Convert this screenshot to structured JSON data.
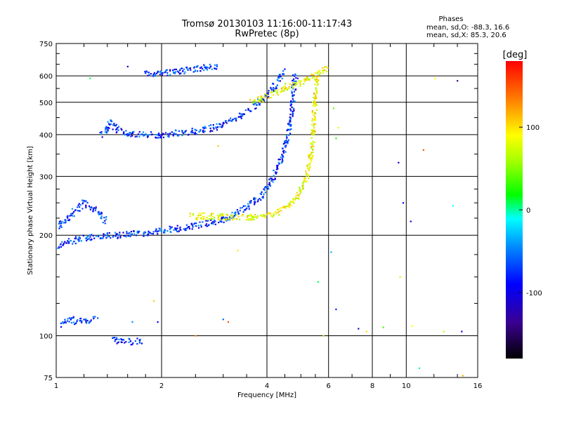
{
  "chart_data": {
    "type": "scatter",
    "title": "Tromsø 20130103 11:16:00-11:17:43",
    "subtitle": "RwPretec (8p)",
    "xlabel": "Frequency [MHz]",
    "ylabel": "Stationary phase Virtual Height [km]",
    "x_scale": "log",
    "y_scale": "log",
    "xlim": [
      1,
      16
    ],
    "ylim": [
      75,
      750
    ],
    "x_ticks": [
      1,
      2,
      4,
      6,
      8,
      10,
      16
    ],
    "x_gridlines": [
      2,
      4,
      6,
      8,
      10
    ],
    "x_minor_ticks": [
      1.2,
      1.4,
      1.6,
      1.8,
      2.5,
      3,
      3.5,
      4.5,
      5,
      5.5,
      7,
      9,
      12,
      14
    ],
    "y_ticks": [
      75,
      100,
      200,
      300,
      400,
      500,
      600,
      750
    ],
    "y_gridlines": [
      100,
      200,
      300,
      400,
      500,
      600
    ],
    "y_minor_ticks": [
      125,
      150,
      175,
      225,
      250,
      275,
      350,
      450,
      550,
      650,
      700
    ],
    "grid": true,
    "phases_box": {
      "heading": "Phases",
      "line1": "mean, sd,O: -88.3, 16.6",
      "line2": "mean, sd,X:  85.3, 20.6"
    },
    "colorbar": {
      "label": "[deg]",
      "range": [
        -180,
        180
      ],
      "ticks": [
        100,
        0,
        -100
      ],
      "colormap": "rainbow",
      "placement": "right"
    },
    "series": [
      {
        "mode": "O",
        "phase_mean": -88.3,
        "traces": [
          {
            "x": [
              1.0,
              1.05,
              1.1,
              1.2,
              1.3,
              1.4,
              1.5,
              1.6,
              1.7,
              1.8,
              1.9,
              2.0,
              2.2,
              2.4,
              2.6,
              2.8,
              3.0,
              3.2,
              3.4,
              3.6,
              3.8,
              4.0,
              4.2,
              4.4,
              4.6,
              4.7,
              4.75,
              4.8
            ],
            "y": [
              185,
              190,
              192,
              196,
              198,
              199,
              200,
              201,
              202,
              203,
              205,
              207,
              209,
              212,
              215,
              218,
              223,
              230,
              238,
              248,
              260,
              275,
              300,
              340,
              400,
              460,
              520,
              600
            ]
          },
          {
            "x": [
              1.0,
              1.05,
              1.1,
              1.15,
              1.2,
              1.3,
              1.4
            ],
            "y": [
              210,
              220,
              230,
              240,
              250,
              235,
              220
            ]
          },
          {
            "x": [
              1.35,
              1.4,
              1.42,
              1.45,
              1.5,
              1.6,
              1.8,
              2.0,
              2.2,
              2.5,
              2.8,
              3.0,
              3.3,
              3.6,
              3.9,
              4.1,
              4.3,
              4.5
            ],
            "y": [
              400,
              420,
              440,
              430,
              410,
              405,
              400,
              400,
              405,
              410,
              420,
              430,
              450,
              480,
              510,
              540,
              580,
              620
            ]
          },
          {
            "x": [
              1.8,
              1.9,
              2.0,
              2.1,
              2.3,
              2.5,
              2.7,
              2.9
            ],
            "y": [
              615,
              610,
              612,
              615,
              622,
              630,
              638,
              640
            ]
          },
          {
            "x": [
              1.03,
              1.06,
              1.1,
              1.15,
              1.2,
              1.3
            ],
            "y": [
              108,
              110,
              112,
              110,
              111,
              112
            ]
          },
          {
            "x": [
              1.45,
              1.55,
              1.65,
              1.75
            ],
            "y": [
              97,
              96,
              96,
              97
            ]
          }
        ]
      },
      {
        "mode": "X",
        "phase_mean": 85.3,
        "traces": [
          {
            "x": [
              2.4,
              2.7,
              3.0,
              3.3,
              3.6,
              3.9,
              4.2,
              4.5,
              4.8,
              5.0,
              5.2,
              5.3,
              5.4,
              5.45,
              5.5,
              5.55
            ],
            "y": [
              228,
              228,
              227,
              226,
              226,
              228,
              232,
              240,
              255,
              275,
              300,
              330,
              380,
              450,
              520,
              600
            ]
          },
          {
            "x": [
              3.6,
              4.0,
              4.3,
              4.6,
              4.9,
              5.1,
              5.3,
              5.5,
              5.7,
              5.8,
              5.9
            ],
            "y": [
              500,
              520,
              540,
              560,
              570,
              580,
              590,
              600,
              610,
              620,
              640
            ]
          }
        ]
      }
    ],
    "scattered_points": [
      {
        "x": 4.9,
        "y": 590,
        "phase": -90
      },
      {
        "x": 9.5,
        "y": 330,
        "phase": -110
      },
      {
        "x": 10.3,
        "y": 220,
        "phase": -120
      },
      {
        "x": 11.2,
        "y": 360,
        "phase": 150
      },
      {
        "x": 12.1,
        "y": 590,
        "phase": 90
      },
      {
        "x": 14.0,
        "y": 580,
        "phase": -140
      },
      {
        "x": 13.6,
        "y": 245,
        "phase": -20
      },
      {
        "x": 9.8,
        "y": 250,
        "phase": -100
      },
      {
        "x": 9.6,
        "y": 150,
        "phase": 100
      },
      {
        "x": 10.4,
        "y": 107,
        "phase": 90
      },
      {
        "x": 12.8,
        "y": 103,
        "phase": 60
      },
      {
        "x": 14.4,
        "y": 103,
        "phase": -110
      },
      {
        "x": 10.9,
        "y": 80,
        "phase": -10
      },
      {
        "x": 14.5,
        "y": 76,
        "phase": 120
      },
      {
        "x": 8.6,
        "y": 106,
        "phase": 30
      },
      {
        "x": 7.3,
        "y": 105,
        "phase": -130
      },
      {
        "x": 7.7,
        "y": 103,
        "phase": 100
      },
      {
        "x": 6.3,
        "y": 120,
        "phase": -90
      },
      {
        "x": 6.1,
        "y": 178,
        "phase": -50
      },
      {
        "x": 5.6,
        "y": 145,
        "phase": 0
      },
      {
        "x": 5.8,
        "y": 100,
        "phase": 60
      },
      {
        "x": 3.3,
        "y": 180,
        "phase": 100
      },
      {
        "x": 3.0,
        "y": 112,
        "phase": -70
      },
      {
        "x": 3.1,
        "y": 110,
        "phase": 150
      },
      {
        "x": 2.5,
        "y": 100,
        "phase": 130
      },
      {
        "x": 1.9,
        "y": 127,
        "phase": 110
      },
      {
        "x": 1.65,
        "y": 110,
        "phase": -60
      },
      {
        "x": 1.95,
        "y": 110,
        "phase": -100
      },
      {
        "x": 2.9,
        "y": 370,
        "phase": 110
      },
      {
        "x": 1.25,
        "y": 590,
        "phase": 0
      },
      {
        "x": 1.6,
        "y": 640,
        "phase": -120
      },
      {
        "x": 6.2,
        "y": 480,
        "phase": 40
      },
      {
        "x": 6.4,
        "y": 420,
        "phase": 80
      },
      {
        "x": 6.3,
        "y": 390,
        "phase": 20
      }
    ]
  }
}
